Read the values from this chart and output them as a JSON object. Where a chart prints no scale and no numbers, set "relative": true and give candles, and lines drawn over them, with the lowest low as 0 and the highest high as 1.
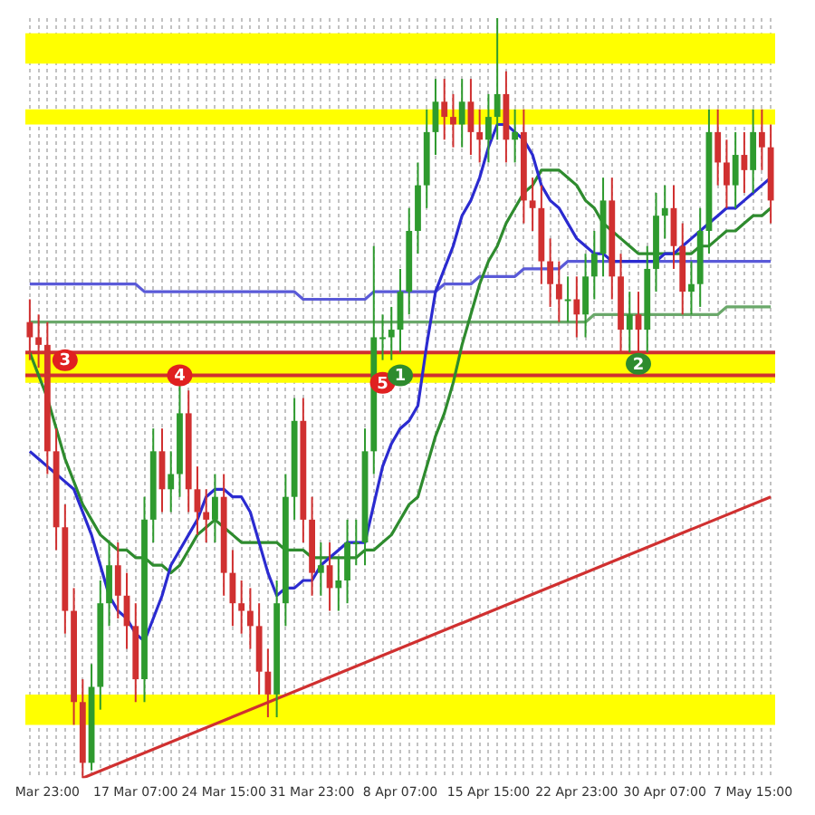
{
  "chart_data": {
    "type": "candlestick",
    "relative": true,
    "grid": "x",
    "legend": false,
    "tick_labels": "x",
    "categories": [
      null,
      null,
      "Mar 23:00",
      null,
      null,
      null,
      null,
      null,
      null,
      null,
      null,
      null,
      "17 Mar 07:00",
      null,
      null,
      null,
      null,
      null,
      null,
      null,
      null,
      null,
      "24 Mar 15:00",
      null,
      null,
      null,
      null,
      null,
      null,
      null,
      null,
      null,
      "31 Mar 23:00",
      null,
      null,
      null,
      null,
      null,
      null,
      null,
      null,
      null,
      "8 Apr 07:00",
      null,
      null,
      null,
      null,
      null,
      null,
      null,
      null,
      null,
      "15 Apr 15:00",
      null,
      null,
      null,
      null,
      null,
      null,
      null,
      null,
      null,
      "22 Apr 23:00",
      null,
      null,
      null,
      null,
      null,
      null,
      null,
      null,
      null,
      "30 Apr 07:00",
      null,
      null,
      null,
      null,
      null,
      null,
      null,
      null,
      null,
      "7 May 15:00",
      null,
      null
    ],
    "ohlc": [
      [
        0.6,
        0.63,
        0.55,
        0.58
      ],
      [
        0.58,
        0.61,
        0.54,
        0.57
      ],
      [
        0.57,
        0.6,
        0.4,
        0.43
      ],
      [
        0.43,
        0.46,
        0.3,
        0.33
      ],
      [
        0.33,
        0.36,
        0.19,
        0.22
      ],
      [
        0.22,
        0.25,
        0.07,
        0.1
      ],
      [
        0.1,
        0.13,
        0,
        0.02
      ],
      [
        0.02,
        0.15,
        0.01,
        0.12
      ],
      [
        0.12,
        0.26,
        0.09,
        0.23
      ],
      [
        0.23,
        0.31,
        0.2,
        0.28
      ],
      [
        0.28,
        0.31,
        0.21,
        0.24
      ],
      [
        0.24,
        0.27,
        0.17,
        0.2
      ],
      [
        0.2,
        0.23,
        0.1,
        0.13
      ],
      [
        0.13,
        0.37,
        0.1,
        0.34
      ],
      [
        0.34,
        0.46,
        0.31,
        0.43
      ],
      [
        0.43,
        0.46,
        0.35,
        0.38
      ],
      [
        0.38,
        0.43,
        0.35,
        0.4
      ],
      [
        0.4,
        0.52,
        0.37,
        0.48
      ],
      [
        0.48,
        0.51,
        0.35,
        0.38
      ],
      [
        0.38,
        0.41,
        0.32,
        0.35
      ],
      [
        0.35,
        0.38,
        0.31,
        0.34
      ],
      [
        0.34,
        0.4,
        0.31,
        0.37
      ],
      [
        0.37,
        0.4,
        0.24,
        0.27
      ],
      [
        0.27,
        0.3,
        0.2,
        0.23
      ],
      [
        0.23,
        0.26,
        0.19,
        0.22
      ],
      [
        0.22,
        0.25,
        0.17,
        0.2
      ],
      [
        0.2,
        0.23,
        0.11,
        0.14
      ],
      [
        0.14,
        0.17,
        0.08,
        0.11
      ],
      [
        0.11,
        0.26,
        0.08,
        0.23
      ],
      [
        0.23,
        0.4,
        0.2,
        0.37
      ],
      [
        0.37,
        0.5,
        0.34,
        0.47
      ],
      [
        0.47,
        0.5,
        0.31,
        0.34
      ],
      [
        0.34,
        0.37,
        0.24,
        0.27
      ],
      [
        0.27,
        0.31,
        0.24,
        0.28
      ],
      [
        0.28,
        0.31,
        0.22,
        0.25
      ],
      [
        0.25,
        0.29,
        0.22,
        0.26
      ],
      [
        0.26,
        0.34,
        0.23,
        0.31
      ],
      [
        0.31,
        0.34,
        0.28,
        0.31
      ],
      [
        0.31,
        0.46,
        0.28,
        0.43
      ],
      [
        0.43,
        0.7,
        0.4,
        0.58
      ],
      [
        0.58,
        0.61,
        0.55,
        0.58
      ],
      [
        0.58,
        0.62,
        0.55,
        0.59
      ],
      [
        0.59,
        0.67,
        0.56,
        0.64
      ],
      [
        0.64,
        0.75,
        0.61,
        0.72
      ],
      [
        0.72,
        0.81,
        0.69,
        0.78
      ],
      [
        0.78,
        0.88,
        0.75,
        0.85
      ],
      [
        0.85,
        0.92,
        0.82,
        0.89
      ],
      [
        0.89,
        0.92,
        0.84,
        0.87
      ],
      [
        0.87,
        0.9,
        0.83,
        0.86
      ],
      [
        0.86,
        0.92,
        0.83,
        0.89
      ],
      [
        0.89,
        0.92,
        0.82,
        0.85
      ],
      [
        0.85,
        0.88,
        0.81,
        0.84
      ],
      [
        0.84,
        0.9,
        0.81,
        0.87
      ],
      [
        0.87,
        1,
        0.84,
        0.9
      ],
      [
        0.9,
        0.93,
        0.81,
        0.84
      ],
      [
        0.84,
        0.88,
        0.81,
        0.85
      ],
      [
        0.85,
        0.88,
        0.73,
        0.76
      ],
      [
        0.76,
        0.79,
        0.72,
        0.75
      ],
      [
        0.75,
        0.78,
        0.65,
        0.68
      ],
      [
        0.68,
        0.71,
        0.62,
        0.65
      ],
      [
        0.65,
        0.68,
        0.6,
        0.63
      ],
      [
        0.63,
        0.66,
        0.6,
        0.63
      ],
      [
        0.63,
        0.66,
        0.58,
        0.61
      ],
      [
        0.61,
        0.69,
        0.58,
        0.66
      ],
      [
        0.66,
        0.72,
        0.63,
        0.69
      ],
      [
        0.69,
        0.79,
        0.66,
        0.76
      ],
      [
        0.76,
        0.79,
        0.63,
        0.66
      ],
      [
        0.66,
        0.69,
        0.56,
        0.59
      ],
      [
        0.59,
        0.64,
        0.56,
        0.61
      ],
      [
        0.61,
        0.64,
        0.56,
        0.59
      ],
      [
        0.59,
        0.7,
        0.56,
        0.67
      ],
      [
        0.67,
        0.77,
        0.64,
        0.74
      ],
      [
        0.74,
        0.78,
        0.71,
        0.75
      ],
      [
        0.75,
        0.78,
        0.67,
        0.7
      ],
      [
        0.7,
        0.73,
        0.61,
        0.64
      ],
      [
        0.64,
        0.68,
        0.61,
        0.65
      ],
      [
        0.65,
        0.75,
        0.62,
        0.72
      ],
      [
        0.72,
        0.88,
        0.69,
        0.85
      ],
      [
        0.85,
        0.88,
        0.78,
        0.81
      ],
      [
        0.81,
        0.84,
        0.75,
        0.78
      ],
      [
        0.78,
        0.85,
        0.75,
        0.82
      ],
      [
        0.82,
        0.85,
        0.77,
        0.8
      ],
      [
        0.8,
        0.88,
        0.77,
        0.85
      ],
      [
        0.85,
        0.88,
        0.8,
        0.83
      ],
      [
        0.83,
        0.86,
        0.73,
        0.76
      ]
    ],
    "series": [
      {
        "type": "line",
        "color": "#2b2bd0",
        "values": [
          0.43,
          0.42,
          0.41,
          0.4,
          0.39,
          0.38,
          0.35,
          0.32,
          0.28,
          0.24,
          0.22,
          0.21,
          0.19,
          0.18,
          0.21,
          0.24,
          0.28,
          0.3,
          0.32,
          0.34,
          0.37,
          0.38,
          0.38,
          0.37,
          0.37,
          0.35,
          0.31,
          0.27,
          0.24,
          0.25,
          0.25,
          0.26,
          0.26,
          0.28,
          0.29,
          0.3,
          0.31,
          0.31,
          0.31,
          0.36,
          0.41,
          0.44,
          0.46,
          0.47,
          0.49,
          0.57,
          0.64,
          0.67,
          0.7,
          0.74,
          0.76,
          0.79,
          0.83,
          0.86,
          0.86,
          0.85,
          0.84,
          0.82,
          0.78,
          0.76,
          0.75,
          0.73,
          0.71,
          0.7,
          0.69,
          0.69,
          0.68,
          0.68,
          0.68,
          0.68,
          0.68,
          0.68,
          0.69,
          0.69,
          0.7,
          0.71,
          0.72,
          0.73,
          0.74,
          0.75,
          0.75,
          0.76,
          0.77,
          0.78,
          0.79
        ]
      },
      {
        "type": "line",
        "color": "#2e8b2e",
        "values": [
          0.56,
          0.53,
          0.5,
          0.46,
          0.42,
          0.39,
          0.36,
          0.34,
          0.32,
          0.31,
          0.3,
          0.3,
          0.29,
          0.29,
          0.28,
          0.28,
          0.27,
          0.28,
          0.3,
          0.32,
          0.33,
          0.34,
          0.33,
          0.32,
          0.31,
          0.31,
          0.31,
          0.31,
          0.31,
          0.3,
          0.3,
          0.3,
          0.29,
          0.29,
          0.29,
          0.29,
          0.29,
          0.29,
          0.3,
          0.3,
          0.31,
          0.32,
          0.34,
          0.36,
          0.37,
          0.41,
          0.45,
          0.48,
          0.52,
          0.57,
          0.61,
          0.65,
          0.68,
          0.7,
          0.73,
          0.75,
          0.77,
          0.78,
          0.8,
          0.8,
          0.8,
          0.79,
          0.78,
          0.76,
          0.75,
          0.73,
          0.72,
          0.71,
          0.7,
          0.69,
          0.69,
          0.69,
          0.69,
          0.69,
          0.69,
          0.69,
          0.7,
          0.7,
          0.71,
          0.72,
          0.72,
          0.73,
          0.74,
          0.74,
          0.75
        ]
      },
      {
        "type": "line",
        "color": "#5a5ad8",
        "values": [
          0.65,
          0.65,
          0.65,
          0.65,
          0.65,
          0.65,
          0.65,
          0.65,
          0.65,
          0.65,
          0.65,
          0.65,
          0.65,
          0.64,
          0.64,
          0.64,
          0.64,
          0.64,
          0.64,
          0.64,
          0.64,
          0.64,
          0.64,
          0.64,
          0.64,
          0.64,
          0.64,
          0.64,
          0.64,
          0.64,
          0.64,
          0.63,
          0.63,
          0.63,
          0.63,
          0.63,
          0.63,
          0.63,
          0.63,
          0.64,
          0.64,
          0.64,
          0.64,
          0.64,
          0.64,
          0.64,
          0.64,
          0.65,
          0.65,
          0.65,
          0.65,
          0.66,
          0.66,
          0.66,
          0.66,
          0.66,
          0.67,
          0.67,
          0.67,
          0.67,
          0.67,
          0.68,
          0.68,
          0.68,
          0.68,
          0.68,
          0.68,
          0.68,
          0.68,
          0.68,
          0.68,
          0.68,
          0.68,
          0.68,
          0.68,
          0.68,
          0.68,
          0.68,
          0.68,
          0.68,
          0.68,
          0.68,
          0.68,
          0.68,
          0.68
        ]
      },
      {
        "type": "line",
        "color": "#6aa86a",
        "values": [
          0.6,
          0.6,
          0.6,
          0.6,
          0.6,
          0.6,
          0.6,
          0.6,
          0.6,
          0.6,
          0.6,
          0.6,
          0.6,
          0.6,
          0.6,
          0.6,
          0.6,
          0.6,
          0.6,
          0.6,
          0.6,
          0.6,
          0.6,
          0.6,
          0.6,
          0.6,
          0.6,
          0.6,
          0.6,
          0.6,
          0.6,
          0.6,
          0.6,
          0.6,
          0.6,
          0.6,
          0.6,
          0.6,
          0.6,
          0.6,
          0.6,
          0.6,
          0.6,
          0.6,
          0.6,
          0.6,
          0.6,
          0.6,
          0.6,
          0.6,
          0.6,
          0.6,
          0.6,
          0.6,
          0.6,
          0.6,
          0.6,
          0.6,
          0.6,
          0.6,
          0.6,
          0.6,
          0.6,
          0.6,
          0.61,
          0.61,
          0.61,
          0.61,
          0.61,
          0.61,
          0.61,
          0.61,
          0.61,
          0.61,
          0.61,
          0.61,
          0.61,
          0.61,
          0.61,
          0.62,
          0.62,
          0.62,
          0.62,
          0.62,
          0.62
        ]
      },
      {
        "type": "line",
        "color": "#d03030",
        "values": [
          null,
          null,
          null,
          null,
          null,
          null,
          0,
          null,
          null,
          null,
          null,
          null,
          null,
          null,
          null,
          null,
          null,
          null,
          null,
          null,
          null,
          null,
          null,
          null,
          null,
          null,
          null,
          null,
          null,
          null,
          null,
          null,
          null,
          null,
          null,
          null,
          null,
          null,
          null,
          null,
          null,
          null,
          null,
          null,
          null,
          null,
          null,
          null,
          null,
          null,
          null,
          null,
          null,
          null,
          null,
          null,
          null,
          null,
          null,
          null,
          null,
          null,
          null,
          null,
          null,
          null,
          null,
          null,
          null,
          null,
          null,
          null,
          null,
          null,
          null,
          null,
          null,
          null,
          null,
          null,
          null,
          null,
          null,
          null,
          0.37
        ]
      }
    ],
    "bands": [
      {
        "axis": "y",
        "from": 0.94,
        "to": 0.98,
        "color": "#ffff00"
      },
      {
        "axis": "y",
        "from": 0.86,
        "to": 0.88,
        "color": "#ffff00"
      },
      {
        "axis": "y",
        "from": 0.52,
        "to": 0.53,
        "color": "#ffff00"
      },
      {
        "axis": "y",
        "from": 0.53,
        "to": 0.56,
        "color": "#ffff00"
      },
      {
        "axis": "y",
        "from": 0.07,
        "to": 0.11,
        "color": "#ffff00"
      }
    ],
    "ref_lines": [
      {
        "axis": "y",
        "value": 0.53,
        "color": "#d03030"
      },
      {
        "axis": "y",
        "value": 0.56,
        "color": "#d03030"
      }
    ],
    "annotations": [
      "3",
      "4",
      "5",
      "1",
      "2"
    ]
  }
}
